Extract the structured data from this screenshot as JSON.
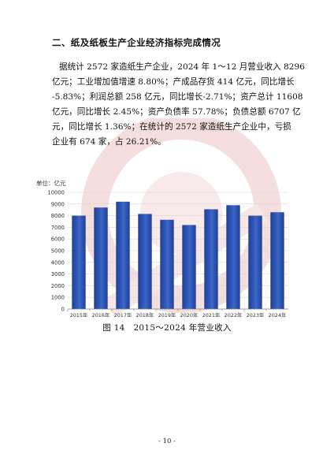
{
  "section": {
    "heading": "二、纸及纸板生产企业经济指标完成情况",
    "paragraph_lines": [
      "据统计 2572 家造纸生产企业，2024 年 1～12 月营业收入 8296",
      "亿元；工业增加值增速 8.80%；产成品存货 414 亿元，同比增长",
      "-5.83%；利润总额 258 亿元，同比增长-2.71%；资产总计 11608",
      "亿元，同比增长 2.45%；资产负债率 57.78%；负债总额 6707 亿",
      "元，同比增长 1.36%；在统计的 2572 家造纸生产企业中，亏损",
      "企业有 674 家，占 26.21%。"
    ]
  },
  "chart_data": {
    "type": "bar",
    "unit_label": "单位：亿元",
    "categories": [
      "2015年",
      "2016年",
      "2017年",
      "2018年",
      "2019年",
      "2020年",
      "2021年",
      "2022年",
      "2023年",
      "2024年"
    ],
    "values": [
      8000,
      8700,
      9200,
      8150,
      7650,
      7200,
      8550,
      8900,
      8000,
      8296
    ],
    "ylim": [
      0,
      10000
    ],
    "yticks": [
      0,
      1000,
      2000,
      3000,
      4000,
      5000,
      6000,
      7000,
      8000,
      9000,
      10000
    ],
    "grid": true,
    "legend": "none",
    "bar_color": "#1f3f96",
    "bar_color_light": "#3b66c9"
  },
  "caption": "图 14　2015～2024 年营业收入",
  "page_number": "- 10 -"
}
